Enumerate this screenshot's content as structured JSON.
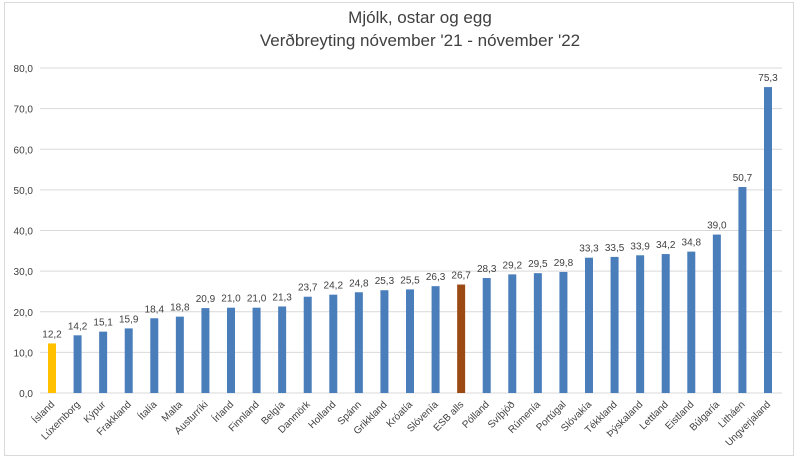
{
  "chart_data": {
    "type": "bar",
    "title": "Mjólk, ostar og egg",
    "subtitle": "Verðbreyting nóvember '21  - nóvember '22",
    "categories": [
      "Ísland",
      "Lúxemborg",
      "Kýpur",
      "Frakkland",
      "Ítalía",
      "Malta",
      "Austurríki",
      "Írland",
      "Finnland",
      "Belgía",
      "Danmörk",
      "Holland",
      "Spánn",
      "Grikkland",
      "Króatía",
      "Slóvenía",
      "ESB alls",
      "Pólland",
      "Svíþjóð",
      "Rúmenía",
      "Portúgal",
      "Slóvakía",
      "Tékkland",
      "Þýskaland",
      "Lettland",
      "Eistland",
      "Búlgaría",
      "Litháen",
      "Ungverjaland"
    ],
    "values": [
      12.2,
      14.2,
      15.1,
      15.9,
      18.4,
      18.8,
      20.9,
      21.0,
      21.0,
      21.3,
      23.7,
      24.2,
      24.8,
      25.3,
      25.5,
      26.3,
      26.7,
      28.3,
      29.2,
      29.5,
      29.8,
      33.3,
      33.5,
      33.9,
      34.2,
      34.8,
      39.0,
      50.7,
      75.3
    ],
    "data_labels": [
      "12,2",
      "14,2",
      "15,1",
      "15,9",
      "18,4",
      "18,8",
      "20,9",
      "21,0",
      "21,0",
      "21,3",
      "23,7",
      "24,2",
      "24,8",
      "25,3",
      "25,5",
      "26,3",
      "26,7",
      "28,3",
      "29,2",
      "29,5",
      "29,8",
      "33,3",
      "33,5",
      "33,9",
      "34,2",
      "34,8",
      "39,0",
      "50,7",
      "75,3"
    ],
    "ylim": [
      0,
      80
    ],
    "yticks": [
      "0,0",
      "10,0",
      "20,0",
      "30,0",
      "40,0",
      "50,0",
      "60,0",
      "70,0",
      "80,0"
    ],
    "grid": true,
    "legend": "none",
    "colors": {
      "default": "#4a7ebb",
      "highlight_island": "#ffc000",
      "highlight_esb": "#9c4a14"
    }
  }
}
